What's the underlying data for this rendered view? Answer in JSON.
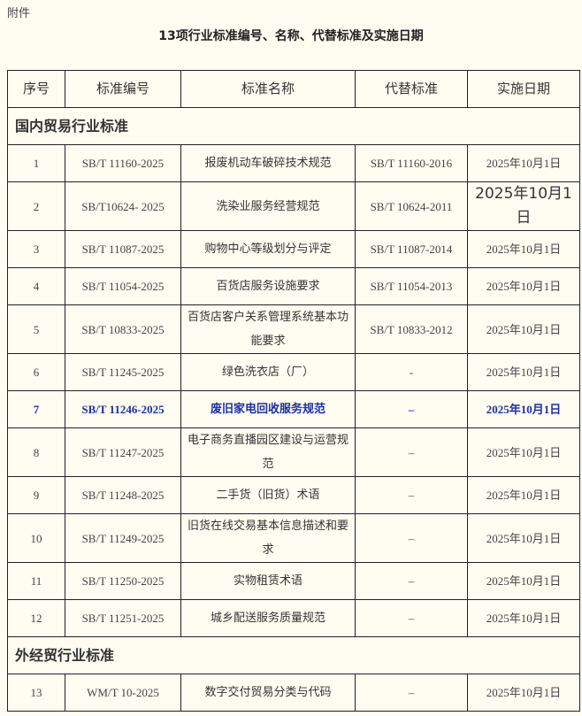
{
  "attachment_label": "附件",
  "title": "13项行业标准编号、名称、代替标准及实施日期",
  "columns": [
    "序号",
    "标准编号",
    "标准名称",
    "代替标准",
    "实施日期"
  ],
  "highlight_color": "#1a2fa8",
  "sections": [
    {
      "name": "国内贸易行业标准",
      "rows": [
        {
          "no": "1",
          "code": "SB/T 11160-2025",
          "name": "报废机动车破碎技术规范",
          "replaces": "SB/T 11160-2016",
          "date": "2025年10月1日"
        },
        {
          "no": "2",
          "code": "SB/T10624- 2025",
          "name": "洗染业服务经营规范",
          "replaces": "SB/T 10624-2011",
          "date": "2025年10月1日"
        },
        {
          "no": "3",
          "code": "SB/T 11087-2025",
          "name": "购物中心等级划分与评定",
          "replaces": "SB/T 11087-2014",
          "date": "2025年10月1日"
        },
        {
          "no": "4",
          "code": "SB/T 11054-2025",
          "name": "百货店服务设施要求",
          "replaces": "SB/T 11054-2013",
          "date": "2025年10月1日"
        },
        {
          "no": "5",
          "code": "SB/T 10833-2025",
          "name": "百货店客户关系管理系统基本功能要求",
          "replaces": "SB/T 10833-2012",
          "date": "2025年10月1日"
        },
        {
          "no": "6",
          "code": "SB/T 11245-2025",
          "name": "绿色洗衣店（厂）",
          "replaces": "-",
          "date": "2025年10月1日"
        },
        {
          "no": "7",
          "code": "SB/T 11246-2025",
          "name": "废旧家电回收服务规范",
          "replaces": "–",
          "date": "2025年10月1日",
          "highlighted": true
        },
        {
          "no": "8",
          "code": "SB/T 11247-2025",
          "name": "电子商务直播园区建设与运营规范",
          "replaces": "–",
          "date": "2025年10月1日"
        },
        {
          "no": "9",
          "code": "SB/T 11248-2025",
          "name": "二手货（旧货）术语",
          "replaces": "–",
          "date": "2025年10月1日"
        },
        {
          "no": "10",
          "code": "SB/T 11249-2025",
          "name": "旧货在线交易基本信息描述和要求",
          "replaces": "–",
          "date": "2025年10月1日"
        },
        {
          "no": "11",
          "code": "SB/T 11250-2025",
          "name": "实物租赁术语",
          "replaces": "–",
          "date": "2025年10月1日"
        },
        {
          "no": "12",
          "code": "SB/T 11251-2025",
          "name": "城乡配送服务质量规范",
          "replaces": "–",
          "date": "2025年10月1日"
        }
      ]
    },
    {
      "name": "外经贸行业标准",
      "rows": [
        {
          "no": "13",
          "code": "WM/T 10-2025",
          "name": "数字交付贸易分类与代码",
          "replaces": "–",
          "date": "2025年10月1日"
        }
      ]
    }
  ]
}
